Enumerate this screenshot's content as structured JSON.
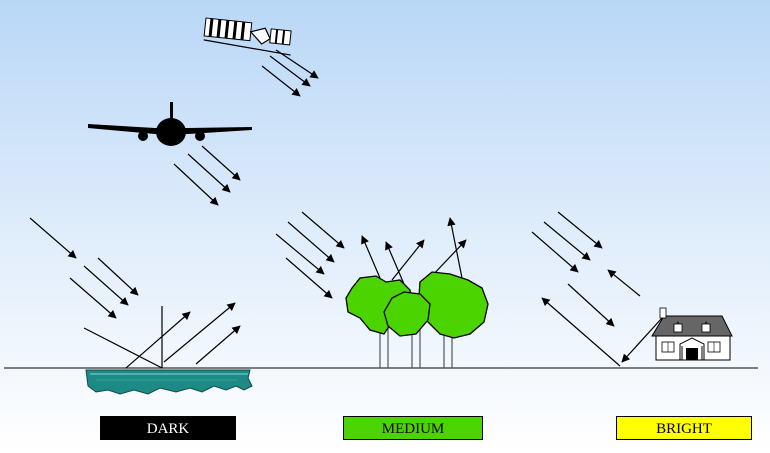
{
  "labels": {
    "dark": "DARK",
    "medium": "MEDIUM",
    "bright": "BRIGHT"
  },
  "icons": [
    "satellite-icon",
    "airplane-icon",
    "house-icon",
    "tree-icon",
    "water-icon"
  ],
  "colors": {
    "sky_top": "#bcd9f8",
    "sky_bottom": "#ffffff",
    "water": "#1e8a86",
    "vegetation": "#4cd400",
    "dark_label": "#000000",
    "medium_label": "#4cd400",
    "bright_label": "#ffff00"
  }
}
